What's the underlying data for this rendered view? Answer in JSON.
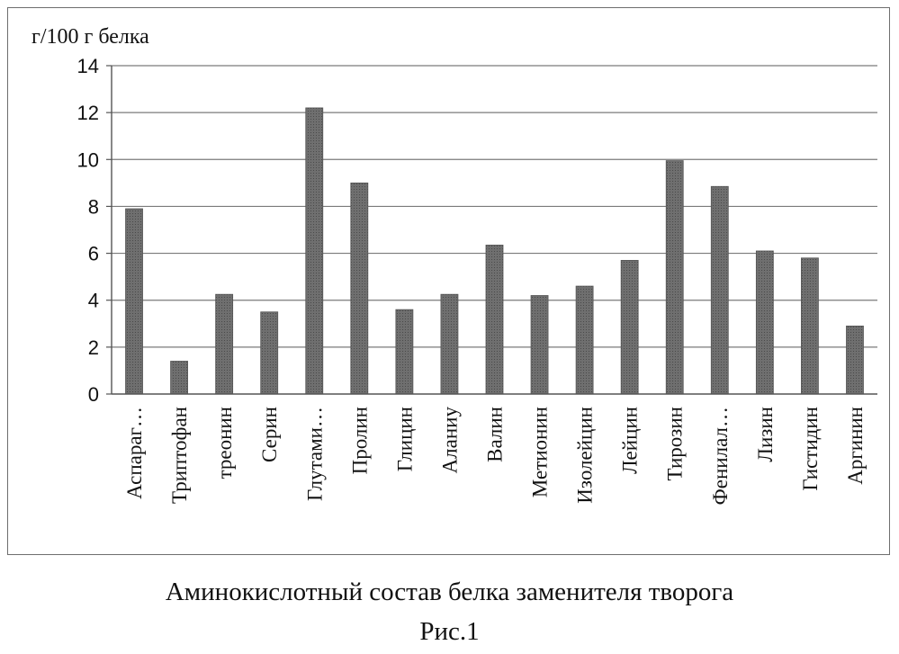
{
  "chart_data": {
    "type": "bar",
    "ylabel": "г/100 г белка",
    "ylim": [
      0,
      14
    ],
    "yticks": [
      0,
      2,
      4,
      6,
      8,
      10,
      12,
      14
    ],
    "grid": true,
    "categories": [
      "Аспараг…",
      "Триптофан",
      "треонин",
      "Серин",
      "Глутами…",
      "Пролин",
      "Глицин",
      "Аланиу",
      "Валин",
      "Метионин",
      "Изолейцин",
      "Лейцин",
      "Тирозин",
      "Фенилал…",
      "Лизин",
      "Гистидин",
      "Аргинин"
    ],
    "values": [
      7.9,
      1.4,
      4.25,
      3.5,
      12.2,
      9.0,
      3.6,
      4.25,
      6.35,
      4.2,
      4.6,
      5.7,
      9.95,
      8.85,
      6.1,
      5.8,
      2.9
    ],
    "bar_color": "#6f6f6f"
  },
  "caption": {
    "title": "Аминокислотный состав белка заменителя творога",
    "figure": "Рис.1"
  }
}
